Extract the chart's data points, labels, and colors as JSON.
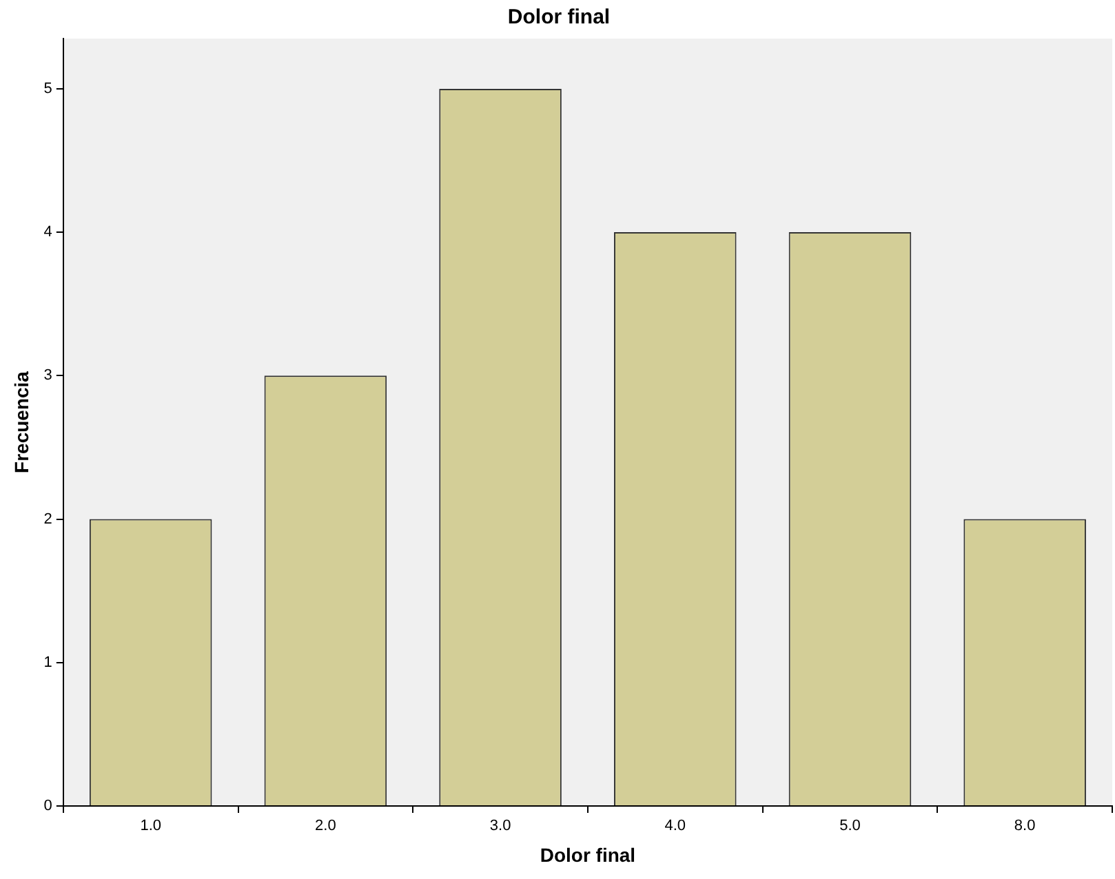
{
  "chart_data": {
    "type": "bar",
    "title": "Dolor final",
    "xlabel": "Dolor final",
    "ylabel": "Frecuencia",
    "categories": [
      "1.0",
      "2.0",
      "3.0",
      "4.0",
      "5.0",
      "8.0"
    ],
    "values": [
      2,
      3,
      5,
      4,
      4,
      2
    ],
    "color": "#d3ce97",
    "ylim": [
      0,
      5.35
    ],
    "yticks": [
      0,
      1,
      2,
      3,
      4,
      5
    ],
    "grid": false,
    "legend": false
  }
}
